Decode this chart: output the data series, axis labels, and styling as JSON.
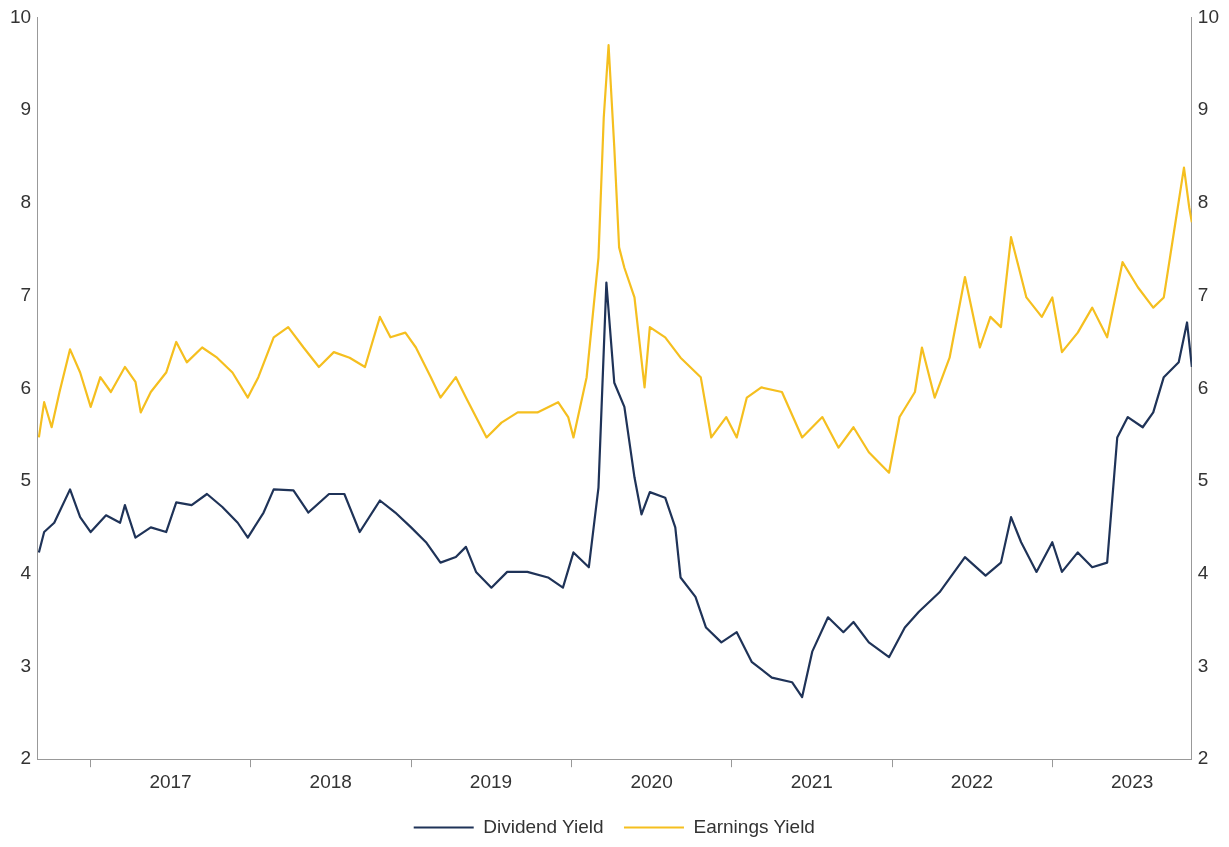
{
  "chart_data": {
    "type": "line",
    "xlim": [
      "2016-09-01",
      "2023-11-15"
    ],
    "xticks": [
      {
        "value": "2017-01-01",
        "label": null
      },
      {
        "value": "2017-07-02",
        "label": "2017"
      },
      {
        "value": "2018-01-01",
        "label": null
      },
      {
        "value": "2018-07-02",
        "label": "2018"
      },
      {
        "value": "2019-01-01",
        "label": null
      },
      {
        "value": "2019-07-02",
        "label": "2019"
      },
      {
        "value": "2020-01-01",
        "label": null
      },
      {
        "value": "2020-07-02",
        "label": "2020"
      },
      {
        "value": "2021-01-01",
        "label": null
      },
      {
        "value": "2021-07-02",
        "label": "2021"
      },
      {
        "value": "2022-01-01",
        "label": null
      },
      {
        "value": "2022-07-02",
        "label": "2022"
      },
      {
        "value": "2023-01-01",
        "label": null
      },
      {
        "value": "2023-07-02",
        "label": "2023"
      }
    ],
    "ylim": [
      2,
      10
    ],
    "yticks": [
      2,
      3,
      4,
      5,
      6,
      7,
      8,
      9,
      10
    ],
    "y2lim": [
      2,
      10
    ],
    "y2ticks": [
      2,
      3,
      4,
      5,
      6,
      7,
      8,
      9,
      10
    ],
    "grid": false,
    "legend": "bottom",
    "line_style": "solid",
    "marker": "none",
    "series": [
      {
        "name": "Dividend Yield",
        "color": "#1f3358",
        "x": [
          "2016-09-05",
          "2016-09-17",
          "2016-10-10",
          "2016-11-15",
          "2016-12-08",
          "2017-01-01",
          "2017-02-05",
          "2017-03-09",
          "2017-03-20",
          "2017-04-13",
          "2017-05-18",
          "2017-06-22",
          "2017-07-15",
          "2017-08-19",
          "2017-09-23",
          "2017-10-28",
          "2017-12-02",
          "2017-12-25",
          "2018-01-30",
          "2018-02-22",
          "2018-04-08",
          "2018-05-12",
          "2018-06-28",
          "2018-08-02",
          "2018-09-06",
          "2018-10-22",
          "2018-11-26",
          "2019-01-01",
          "2019-02-04",
          "2019-03-09",
          "2019-04-13",
          "2019-05-06",
          "2019-05-29",
          "2019-07-03",
          "2019-08-08",
          "2019-09-23",
          "2019-11-09",
          "2019-12-13",
          "2020-01-06",
          "2020-02-10",
          "2020-03-03",
          "2020-03-21",
          "2020-04-08",
          "2020-05-01",
          "2020-05-24",
          "2020-06-09",
          "2020-06-28",
          "2020-08-02",
          "2020-08-25",
          "2020-09-06",
          "2020-10-10",
          "2020-11-03",
          "2020-12-08",
          "2021-01-12",
          "2021-02-15",
          "2021-04-02",
          "2021-05-18",
          "2021-06-10",
          "2021-07-03",
          "2021-08-08",
          "2021-09-12",
          "2021-10-05",
          "2021-11-09",
          "2021-12-25",
          "2022-01-30",
          "2022-03-03",
          "2022-04-19",
          "2022-06-16",
          "2022-08-02",
          "2022-09-06",
          "2022-09-29",
          "2022-10-22",
          "2022-11-26",
          "2023-01-01",
          "2023-01-23",
          "2023-02-28",
          "2023-04-02",
          "2023-05-06",
          "2023-05-29",
          "2023-06-22",
          "2023-07-26",
          "2023-08-19",
          "2023-09-12",
          "2023-10-16",
          "2023-11-04",
          "2023-11-15"
        ],
        "values": [
          4.23,
          4.45,
          4.55,
          4.91,
          4.61,
          4.45,
          4.63,
          4.55,
          4.74,
          4.39,
          4.5,
          4.45,
          4.77,
          4.74,
          4.86,
          4.72,
          4.55,
          4.39,
          4.66,
          4.91,
          4.9,
          4.66,
          4.86,
          4.86,
          4.45,
          4.79,
          4.66,
          4.5,
          4.34,
          4.12,
          4.18,
          4.29,
          4.02,
          3.85,
          4.02,
          4.02,
          3.96,
          3.85,
          4.23,
          4.07,
          4.93,
          7.14,
          6.06,
          5.8,
          5.04,
          4.64,
          4.88,
          4.82,
          4.5,
          3.96,
          3.75,
          3.42,
          3.26,
          3.37,
          3.05,
          2.88,
          2.83,
          2.67,
          3.16,
          3.53,
          3.37,
          3.48,
          3.26,
          3.1,
          3.42,
          3.59,
          3.8,
          4.18,
          3.98,
          4.12,
          4.61,
          4.34,
          4.02,
          4.34,
          4.02,
          4.23,
          4.07,
          4.12,
          5.47,
          5.69,
          5.58,
          5.74,
          6.12,
          6.28,
          6.71,
          6.23
        ]
      },
      {
        "name": "Earnings Yield",
        "color": "#f5bf1f",
        "x": [
          "2016-09-05",
          "2016-09-17",
          "2016-10-04",
          "2016-10-22",
          "2016-11-15",
          "2016-12-08",
          "2017-01-01",
          "2017-01-23",
          "2017-02-16",
          "2017-03-20",
          "2017-04-13",
          "2017-04-25",
          "2017-05-18",
          "2017-06-22",
          "2017-07-15",
          "2017-08-08",
          "2017-09-12",
          "2017-10-16",
          "2017-11-20",
          "2017-12-25",
          "2018-01-18",
          "2018-02-22",
          "2018-03-27",
          "2018-05-01",
          "2018-06-05",
          "2018-07-09",
          "2018-08-14",
          "2018-09-18",
          "2018-10-22",
          "2018-11-15",
          "2018-12-19",
          "2019-01-12",
          "2019-02-15",
          "2019-03-09",
          "2019-04-13",
          "2019-05-06",
          "2019-06-22",
          "2019-07-26",
          "2019-09-01",
          "2019-10-16",
          "2019-12-02",
          "2019-12-25",
          "2020-01-06",
          "2020-02-05",
          "2020-03-03",
          "2020-03-15",
          "2020-03-26",
          "2020-04-08",
          "2020-04-19",
          "2020-05-01",
          "2020-05-24",
          "2020-06-16",
          "2020-06-28",
          "2020-08-02",
          "2020-09-06",
          "2020-10-22",
          "2020-11-15",
          "2020-12-19",
          "2021-01-12",
          "2021-02-04",
          "2021-03-09",
          "2021-04-25",
          "2021-06-10",
          "2021-07-26",
          "2021-09-01",
          "2021-10-05",
          "2021-11-09",
          "2021-12-25",
          "2022-01-18",
          "2022-02-22",
          "2022-03-10",
          "2022-04-08",
          "2022-05-12",
          "2022-06-16",
          "2022-07-20",
          "2022-08-13",
          "2022-09-06",
          "2022-09-29",
          "2022-11-03",
          "2022-12-08",
          "2023-01-01",
          "2023-01-23",
          "2023-02-28",
          "2023-04-02",
          "2023-05-06",
          "2023-06-10",
          "2023-07-15",
          "2023-08-19",
          "2023-09-12",
          "2023-10-05",
          "2023-10-28",
          "2023-11-09",
          "2023-11-15"
        ],
        "values": [
          5.47,
          5.85,
          5.58,
          5.96,
          6.42,
          6.17,
          5.8,
          6.12,
          5.96,
          6.23,
          6.07,
          5.74,
          5.96,
          6.17,
          6.5,
          6.28,
          6.44,
          6.33,
          6.17,
          5.9,
          6.12,
          6.55,
          6.66,
          6.44,
          6.23,
          6.39,
          6.33,
          6.23,
          6.77,
          6.55,
          6.6,
          6.44,
          6.12,
          5.9,
          6.12,
          5.9,
          5.47,
          5.63,
          5.74,
          5.74,
          5.85,
          5.69,
          5.47,
          6.12,
          7.41,
          8.92,
          9.7,
          8.6,
          7.52,
          7.3,
          6.98,
          6.01,
          6.66,
          6.55,
          6.33,
          6.12,
          5.47,
          5.69,
          5.47,
          5.9,
          6.01,
          5.96,
          5.47,
          5.69,
          5.36,
          5.58,
          5.31,
          5.09,
          5.69,
          5.96,
          6.44,
          5.9,
          6.33,
          7.2,
          6.44,
          6.77,
          6.66,
          7.63,
          6.98,
          6.77,
          6.98,
          6.39,
          6.6,
          6.87,
          6.55,
          7.36,
          7.09,
          6.87,
          6.98,
          7.68,
          8.38,
          7.95,
          7.79
        ]
      }
    ]
  }
}
